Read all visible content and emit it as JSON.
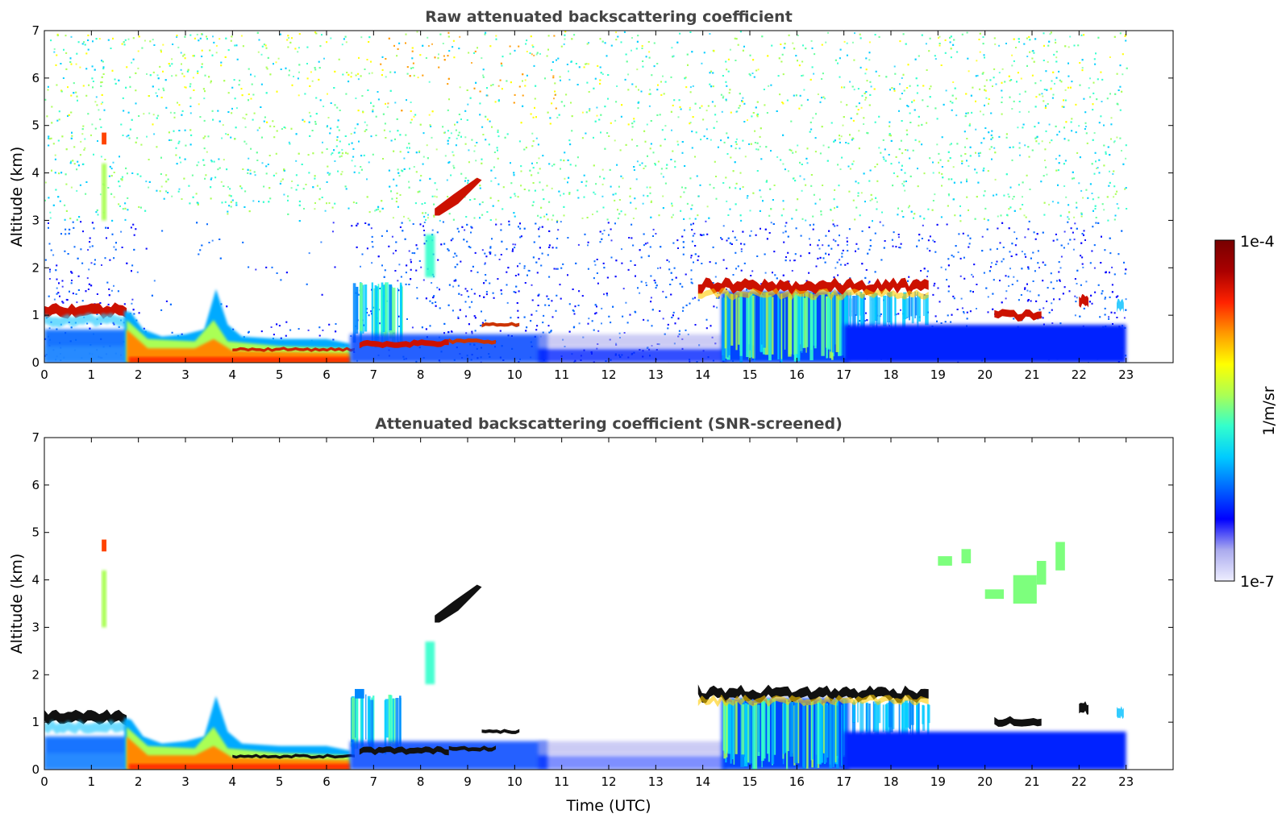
{
  "chart_data": [
    {
      "type": "heatmap",
      "title": "Raw attenuated backscattering coefficient",
      "xlabel": "",
      "ylabel": "Altitude (km)",
      "xlim": [
        0,
        24
      ],
      "ylim": [
        0,
        7
      ],
      "x_ticks": [
        "0",
        "1",
        "2",
        "3",
        "4",
        "5",
        "6",
        "7",
        "8",
        "9",
        "10",
        "11",
        "12",
        "13",
        "14",
        "15",
        "16",
        "17",
        "18",
        "19",
        "20",
        "21",
        "22",
        "23"
      ],
      "y_ticks": [
        "0",
        "1",
        "2",
        "3",
        "4",
        "5",
        "6",
        "7"
      ],
      "data_end_time": 23,
      "grid": false,
      "features": [
        {
          "kind": "cloud",
          "t_start": 0,
          "t_end": 1.8,
          "alt": 1.1
        },
        {
          "kind": "boundary_layer_aerosol",
          "t_start": 1.7,
          "t_end": 6.5,
          "alt_top": 0.6
        },
        {
          "kind": "aerosol_plume",
          "t_start": 3.4,
          "t_end": 3.9,
          "alt_top": 1.6
        },
        {
          "kind": "cloud",
          "t_start": 6.7,
          "t_end": 8.5,
          "alt": 0.4
        },
        {
          "kind": "cloud",
          "t_start": 8.3,
          "t_end": 9.3,
          "alt": 3.5
        },
        {
          "kind": "cloud",
          "t_start": 13.9,
          "t_end": 18.8,
          "alt": 1.6
        },
        {
          "kind": "cloud",
          "t_start": 20.2,
          "t_end": 21.2,
          "alt": 1.0
        },
        {
          "kind": "cloud",
          "t_start": 22.0,
          "t_end": 22.2,
          "alt": 1.3
        }
      ]
    },
    {
      "type": "heatmap",
      "title": "Attenuated backscattering coefficient (SNR-screened)",
      "xlabel": "Time (UTC)",
      "ylabel": "Altitude (km)",
      "xlim": [
        0,
        24
      ],
      "ylim": [
        0,
        7
      ],
      "x_ticks": [
        "0",
        "1",
        "2",
        "3",
        "4",
        "5",
        "6",
        "7",
        "8",
        "9",
        "10",
        "11",
        "12",
        "13",
        "14",
        "15",
        "16",
        "17",
        "18",
        "19",
        "20",
        "21",
        "22",
        "23"
      ],
      "y_ticks": [
        "0",
        "1",
        "2",
        "3",
        "4",
        "5",
        "6",
        "7"
      ],
      "data_end_time": 23,
      "grid": false,
      "features": [
        {
          "kind": "cloud",
          "t_start": 0,
          "t_end": 1.8,
          "alt": 1.1
        },
        {
          "kind": "boundary_layer_aerosol",
          "t_start": 1.7,
          "t_end": 6.5,
          "alt_top": 0.6
        },
        {
          "kind": "aerosol_plume",
          "t_start": 3.4,
          "t_end": 3.9,
          "alt_top": 1.6
        },
        {
          "kind": "cloud",
          "t_start": 6.7,
          "t_end": 8.5,
          "alt": 0.4
        },
        {
          "kind": "cloud",
          "t_start": 8.3,
          "t_end": 9.3,
          "alt": 3.5
        },
        {
          "kind": "cloud",
          "t_start": 13.9,
          "t_end": 18.8,
          "alt": 1.6
        },
        {
          "kind": "cloud",
          "t_start": 20.2,
          "t_end": 21.2,
          "alt": 1.0
        },
        {
          "kind": "cloud",
          "t_start": 22.0,
          "t_end": 22.2,
          "alt": 1.3
        },
        {
          "kind": "cirrus",
          "t_start": 19.0,
          "t_end": 21.7,
          "alt": 4.2
        }
      ]
    }
  ],
  "colorbar": {
    "label": "1/m/sr",
    "max_label": "1e-4",
    "min_label": "1e-7",
    "scale": "log",
    "range": [
      1e-07,
      0.0001
    ],
    "colormap": "jet-like with light lavender at the low end",
    "colors": [
      "#eeeeff",
      "#aaaaee",
      "#0000ff",
      "#0066ff",
      "#00ccff",
      "#33ffcc",
      "#aaff55",
      "#ffff00",
      "#ff9900",
      "#ff2200",
      "#aa0000",
      "#770000"
    ]
  }
}
